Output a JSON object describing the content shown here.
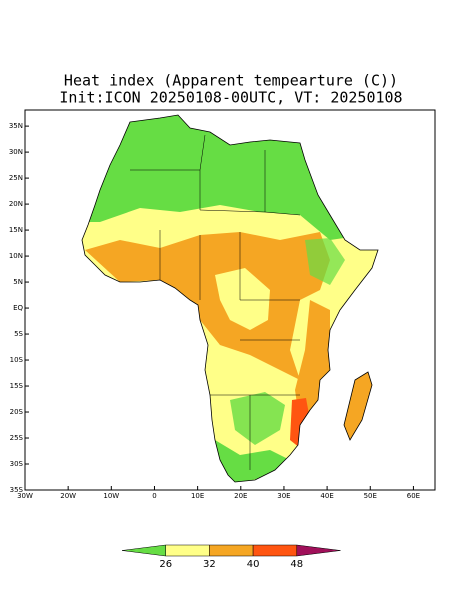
{
  "title": "Heat index (Apparent tempearture (C))",
  "subtitle": "Init:ICON 20250108-00UTC, VT: 20250108",
  "map": {
    "lon_range": [
      -30,
      65
    ],
    "lat_range": [
      -35,
      38.1
    ],
    "lon_ticks": [
      {
        "value": -30,
        "label": "30W"
      },
      {
        "value": -20,
        "label": "20W"
      },
      {
        "value": -10,
        "label": "10W"
      },
      0,
      {
        "value": 10,
        "label": "10E"
      },
      {
        "value": 20,
        "label": "20E"
      },
      {
        "value": 30,
        "label": "30E"
      },
      {
        "value": 40,
        "label": "40E"
      },
      {
        "value": 50,
        "label": "50E"
      },
      {
        "value": 60,
        "label": "60E"
      }
    ],
    "lat_ticks": [
      {
        "value": 35,
        "label": "35N"
      },
      {
        "value": 30,
        "label": "30N"
      },
      {
        "value": 25,
        "label": "25N"
      },
      {
        "value": 20,
        "label": "20N"
      },
      {
        "value": 15,
        "label": "15N"
      },
      {
        "value": 10,
        "label": "10N"
      },
      {
        "value": 5,
        "label": "5N"
      },
      {
        "value": 0,
        "label": "EQ"
      },
      {
        "value": -5,
        "label": "5S"
      },
      {
        "value": -10,
        "label": "10S"
      },
      {
        "value": -15,
        "label": "15S"
      },
      {
        "value": -20,
        "label": "20S"
      },
      {
        "value": -25,
        "label": "25S"
      },
      {
        "value": -30,
        "label": "30S"
      },
      {
        "value": -35,
        "label": "35S"
      }
    ]
  },
  "colorbar": {
    "levels": [
      26,
      32,
      40,
      48
    ],
    "colors": [
      "#66dd44",
      "#ffff88",
      "#f5a623",
      "#ff5511",
      "#a0105a"
    ]
  }
}
